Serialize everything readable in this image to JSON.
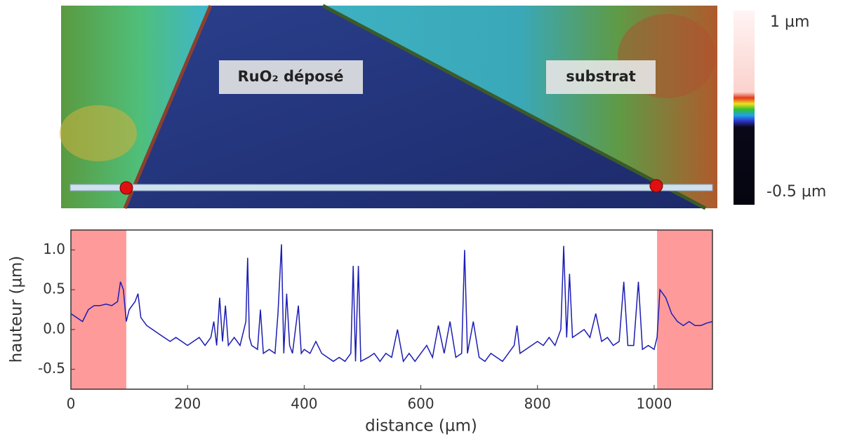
{
  "image": {
    "labels": [
      "RuO₂ déposé",
      "substrat"
    ],
    "colorbar_labels": [
      "1 µm",
      "-0.5 µm"
    ]
  },
  "chart_data": {
    "type": "line",
    "xlabel": "distance (µm)",
    "ylabel": "hauteur (µm)",
    "xlim": [
      0,
      1100
    ],
    "xticks": [
      0,
      200,
      400,
      600,
      800,
      1000
    ],
    "ylim": [
      -0.75,
      1.25
    ],
    "yticks": [
      -0.5,
      {
        "value": 0,
        "label": "0.0"
      },
      0.5,
      {
        "value": 1,
        "label": "1.0"
      }
    ],
    "shaded_regions": [
      [
        0,
        95
      ],
      [
        1005,
        1100
      ]
    ],
    "shade_color": "#ff9a9a",
    "x": [
      0,
      10,
      20,
      30,
      40,
      50,
      60,
      70,
      80,
      85,
      90,
      95,
      100,
      110,
      115,
      120,
      130,
      140,
      150,
      160,
      170,
      180,
      190,
      200,
      210,
      220,
      230,
      240,
      245,
      250,
      255,
      260,
      265,
      270,
      280,
      290,
      300,
      303,
      306,
      310,
      320,
      325,
      330,
      340,
      350,
      355,
      361,
      365,
      370,
      375,
      380,
      390,
      395,
      400,
      410,
      420,
      430,
      440,
      450,
      460,
      470,
      480,
      484,
      488,
      493,
      497,
      510,
      520,
      530,
      540,
      550,
      560,
      570,
      580,
      590,
      600,
      610,
      620,
      630,
      640,
      650,
      660,
      670,
      675,
      680,
      690,
      700,
      710,
      720,
      730,
      740,
      750,
      760,
      765,
      770,
      780,
      790,
      800,
      810,
      820,
      830,
      840,
      845,
      850,
      855,
      860,
      870,
      880,
      890,
      900,
      910,
      920,
      930,
      940,
      948,
      955,
      965,
      973,
      980,
      990,
      1000,
      1005,
      1010,
      1020,
      1030,
      1040,
      1050,
      1060,
      1070,
      1080,
      1090,
      1100
    ],
    "series": [
      {
        "color": "#1c1cb4",
        "values": [
          0.2,
          0.15,
          0.1,
          0.25,
          0.3,
          0.3,
          0.32,
          0.3,
          0.35,
          0.6,
          0.5,
          0.1,
          0.25,
          0.35,
          0.45,
          0.15,
          0.05,
          0.0,
          -0.05,
          -0.1,
          -0.15,
          -0.1,
          -0.15,
          -0.2,
          -0.15,
          -0.1,
          -0.2,
          -0.1,
          0.1,
          -0.2,
          0.4,
          -0.15,
          0.3,
          -0.2,
          -0.1,
          -0.2,
          0.1,
          0.9,
          -0.1,
          -0.2,
          -0.25,
          0.25,
          -0.3,
          -0.25,
          -0.3,
          0.2,
          1.07,
          -0.3,
          0.45,
          -0.2,
          -0.3,
          0.3,
          -0.3,
          -0.25,
          -0.3,
          -0.15,
          -0.3,
          -0.35,
          -0.4,
          -0.35,
          -0.4,
          -0.3,
          0.8,
          -0.4,
          0.8,
          -0.4,
          -0.35,
          -0.3,
          -0.4,
          -0.3,
          -0.35,
          0.0,
          -0.4,
          -0.3,
          -0.4,
          -0.3,
          -0.2,
          -0.35,
          0.05,
          -0.3,
          0.1,
          -0.35,
          -0.3,
          1.0,
          -0.3,
          0.1,
          -0.35,
          -0.4,
          -0.3,
          -0.35,
          -0.4,
          -0.3,
          -0.2,
          0.05,
          -0.3,
          -0.25,
          -0.2,
          -0.15,
          -0.2,
          -0.1,
          -0.2,
          0.0,
          1.05,
          -0.1,
          0.7,
          -0.1,
          -0.05,
          0.0,
          -0.1,
          0.2,
          -0.15,
          -0.1,
          -0.2,
          -0.15,
          0.6,
          -0.2,
          -0.2,
          0.6,
          -0.25,
          -0.2,
          -0.25,
          -0.1,
          0.5,
          0.4,
          0.2,
          0.1,
          0.05,
          0.1,
          0.05,
          0.05,
          0.08,
          0.1
        ]
      }
    ]
  }
}
